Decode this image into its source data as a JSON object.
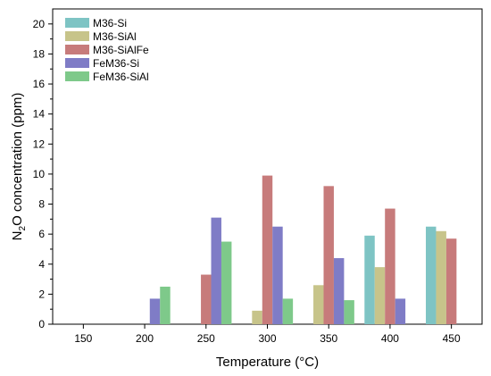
{
  "chart_data": {
    "type": "bar",
    "xlabel": "Temperature (°C)",
    "ylabel": {
      "prefix": "N",
      "subscript": "2",
      "suffix": "O concentration (ppm)"
    },
    "categories": [
      "150",
      "200",
      "250",
      "300",
      "350",
      "400",
      "450"
    ],
    "ylim": [
      0,
      21
    ],
    "yticks": [
      0,
      2,
      4,
      6,
      8,
      10,
      12,
      14,
      16,
      18,
      20
    ],
    "legend_position": "top-left",
    "grid": false,
    "series": [
      {
        "name": "M36-Si",
        "color": "#7ec4c4",
        "values": [
          null,
          null,
          null,
          null,
          null,
          5.9,
          6.5
        ]
      },
      {
        "name": "M36-SiAl",
        "color": "#c7c48a",
        "values": [
          null,
          null,
          null,
          0.9,
          2.6,
          3.8,
          6.2
        ]
      },
      {
        "name": "M36-SiAlFe",
        "color": "#c77b7b",
        "values": [
          null,
          null,
          3.3,
          9.9,
          9.2,
          7.7,
          5.7
        ]
      },
      {
        "name": "FeM36-Si",
        "color": "#7f7cc6",
        "values": [
          null,
          1.7,
          7.1,
          6.5,
          4.4,
          1.7,
          null
        ]
      },
      {
        "name": "FeM36-SiAl",
        "color": "#7ec98a",
        "values": [
          null,
          2.5,
          5.5,
          1.7,
          1.6,
          null,
          null
        ]
      }
    ]
  }
}
